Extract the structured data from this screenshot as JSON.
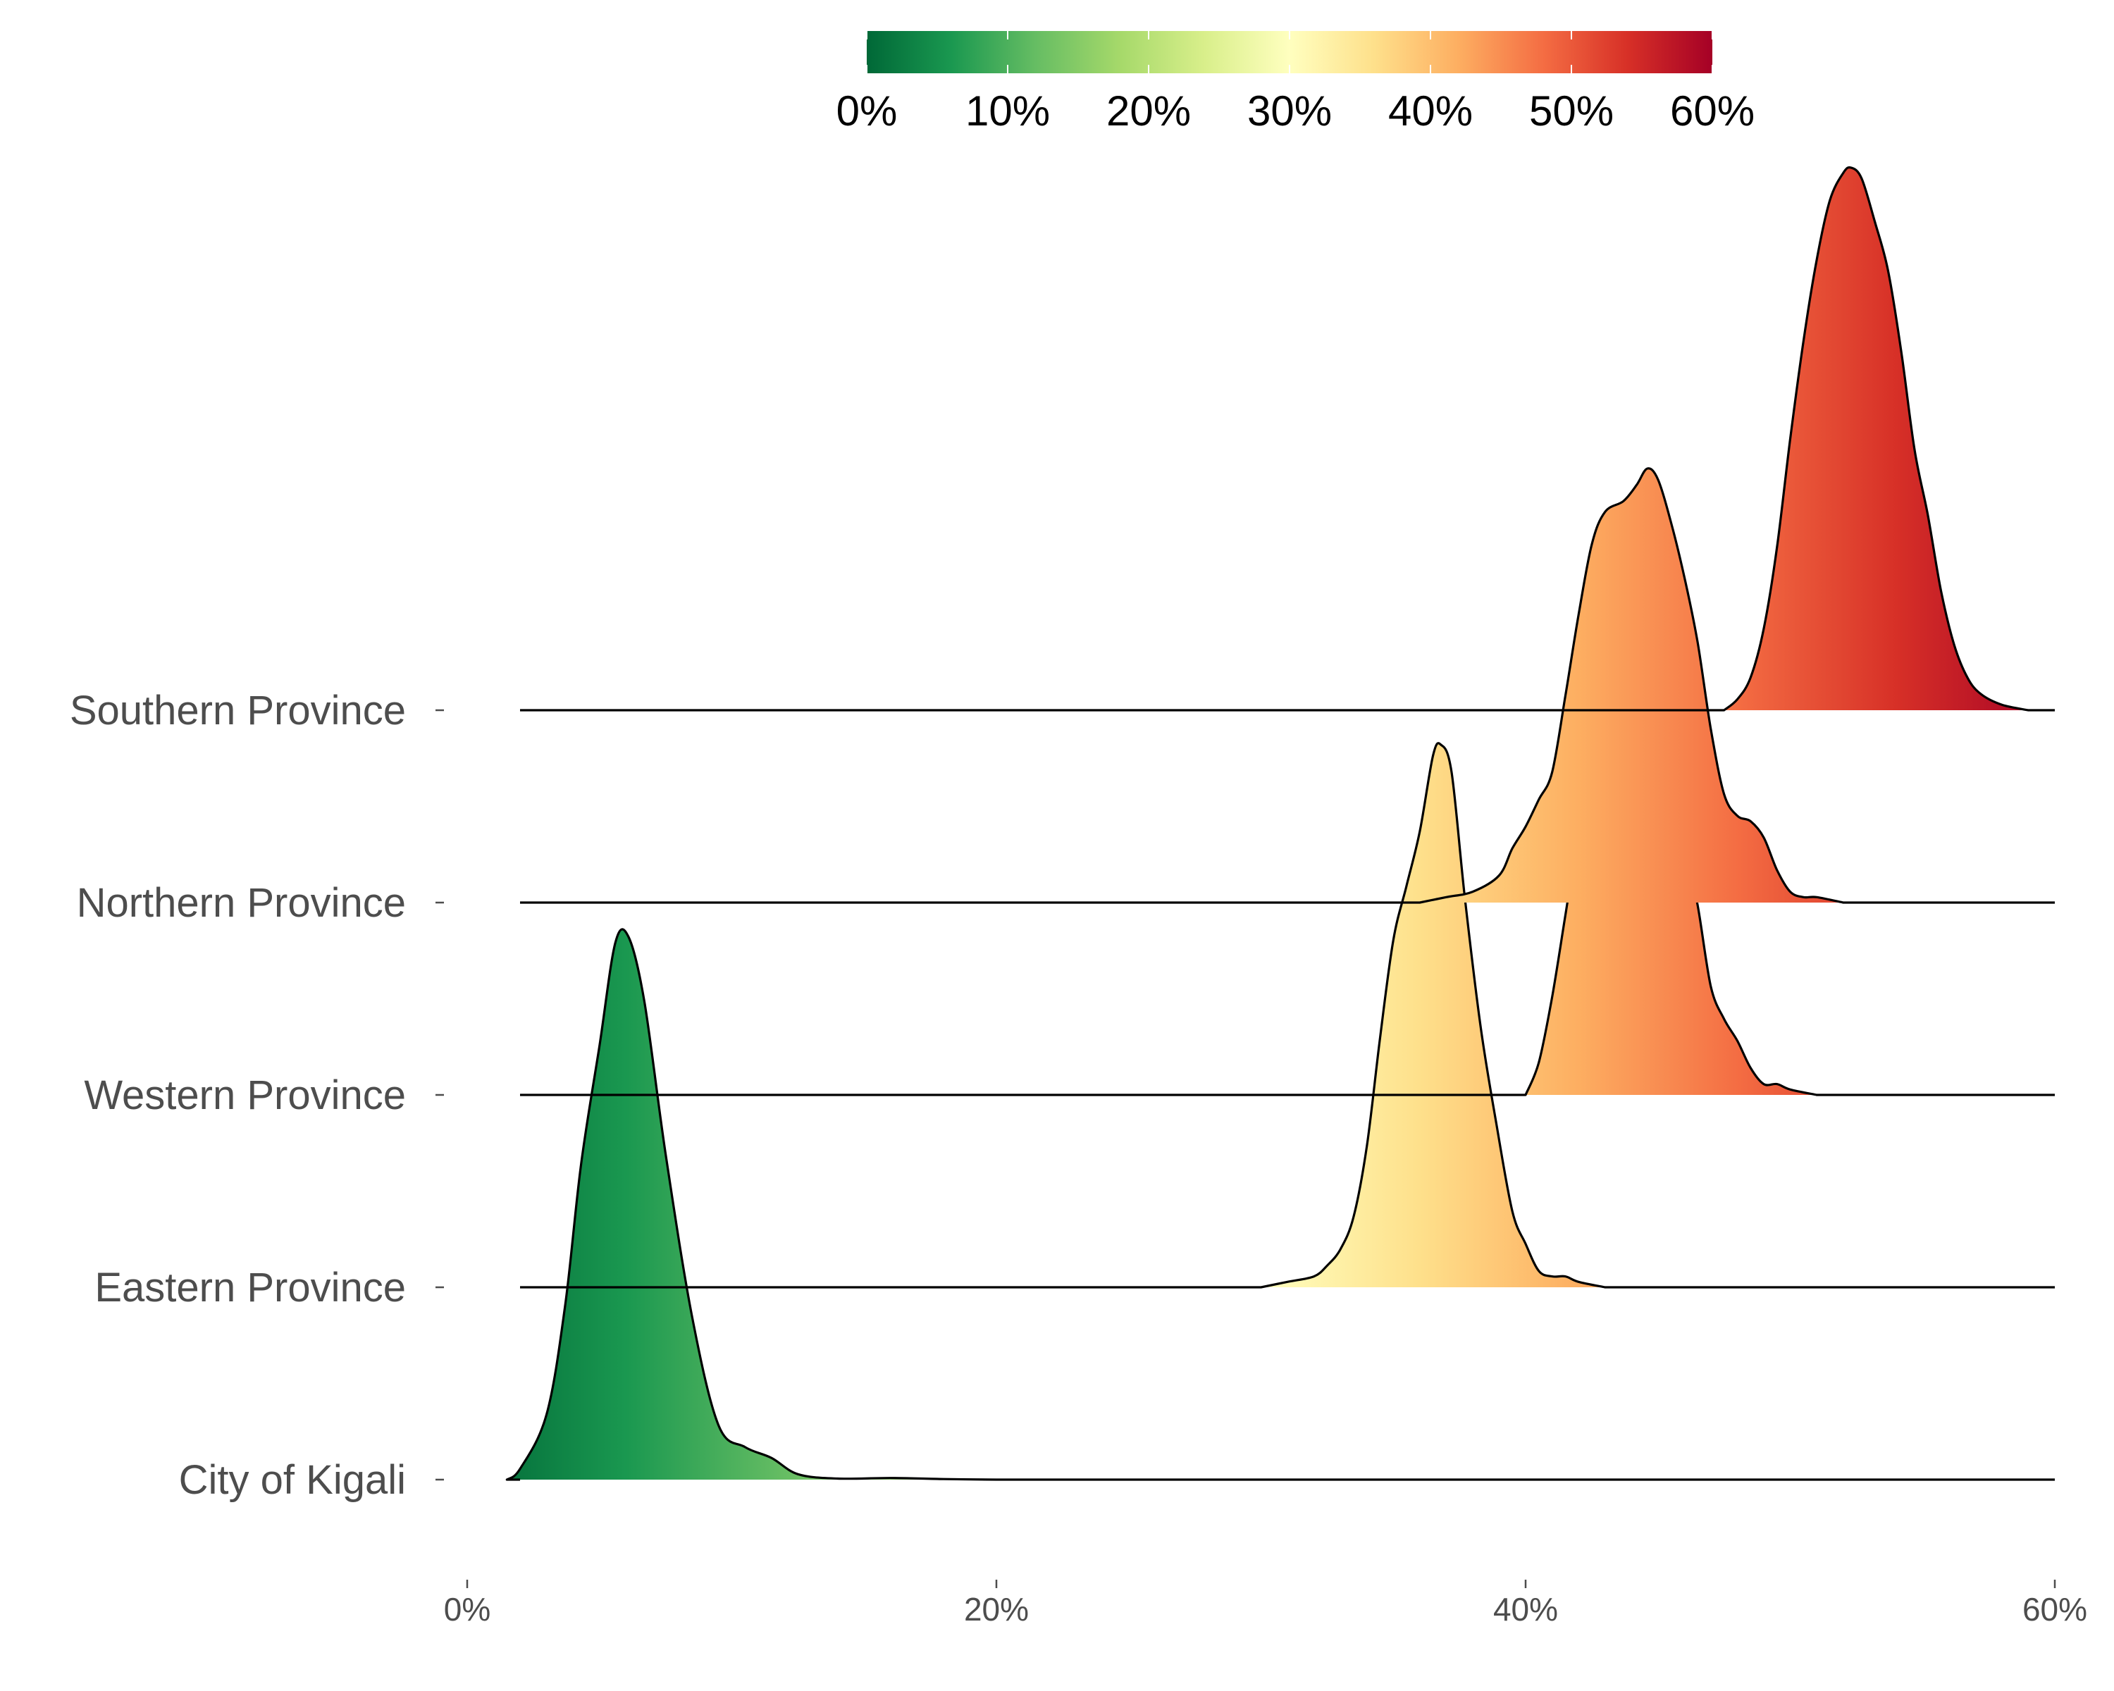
{
  "chart_data": {
    "type": "ridgeline",
    "title": "",
    "xlabel": "",
    "ylabel": "",
    "x_unit": "%",
    "xlim": [
      0,
      60
    ],
    "x_ticks": [
      0,
      20,
      40,
      60
    ],
    "x_tick_labels": [
      "0%",
      "20%",
      "40%",
      "60%"
    ],
    "legend": {
      "type": "colorbar",
      "placement": "top",
      "range": [
        0,
        60
      ],
      "ticks": [
        0,
        10,
        20,
        30,
        40,
        50,
        60
      ],
      "tick_labels": [
        "0%",
        "10%",
        "20%",
        "30%",
        "40%",
        "50%",
        "60%"
      ],
      "palette": [
        "#006837",
        "#1a9850",
        "#66bd63",
        "#a6d96a",
        "#d9ef8b",
        "#ffffbf",
        "#fee08b",
        "#fdae61",
        "#f46d43",
        "#d73027",
        "#a50026"
      ]
    },
    "categories": [
      "Southern Province",
      "Northern Province",
      "Western Province",
      "Eastern Province",
      "City of Kigali"
    ],
    "series": [
      {
        "name": "Southern Province",
        "density": [
          [
            47.5,
            0
          ],
          [
            48,
            0.02
          ],
          [
            48.5,
            0.06
          ],
          [
            49,
            0.15
          ],
          [
            49.5,
            0.3
          ],
          [
            50,
            0.5
          ],
          [
            50.5,
            0.68
          ],
          [
            51,
            0.83
          ],
          [
            51.5,
            0.94
          ],
          [
            52,
            0.99
          ],
          [
            52.3,
            1.0
          ],
          [
            52.7,
            0.98
          ],
          [
            53.2,
            0.9
          ],
          [
            53.7,
            0.81
          ],
          [
            54.2,
            0.66
          ],
          [
            54.7,
            0.48
          ],
          [
            55.2,
            0.36
          ],
          [
            55.7,
            0.22
          ],
          [
            56.2,
            0.12
          ],
          [
            56.7,
            0.06
          ],
          [
            57.2,
            0.03
          ],
          [
            58,
            0.01
          ],
          [
            59,
            0
          ]
        ]
      },
      {
        "name": "Northern Province",
        "density": [
          [
            36,
            0
          ],
          [
            37,
            0.01
          ],
          [
            38,
            0.02
          ],
          [
            39,
            0.05
          ],
          [
            39.5,
            0.1
          ],
          [
            40,
            0.14
          ],
          [
            40.5,
            0.19
          ],
          [
            41,
            0.24
          ],
          [
            41.5,
            0.38
          ],
          [
            42,
            0.53
          ],
          [
            42.5,
            0.66
          ],
          [
            43,
            0.72
          ],
          [
            43.7,
            0.74
          ],
          [
            44.2,
            0.77
          ],
          [
            44.6,
            0.8
          ],
          [
            45,
            0.78
          ],
          [
            45.5,
            0.7
          ],
          [
            46,
            0.6
          ],
          [
            46.5,
            0.48
          ],
          [
            47,
            0.32
          ],
          [
            47.5,
            0.2
          ],
          [
            48,
            0.16
          ],
          [
            48.5,
            0.15
          ],
          [
            49,
            0.12
          ],
          [
            49.5,
            0.06
          ],
          [
            50,
            0.02
          ],
          [
            50.5,
            0.01
          ],
          [
            51,
            0.01
          ],
          [
            52,
            0
          ]
        ]
      },
      {
        "name": "Western Province",
        "density": [
          [
            40,
            0
          ],
          [
            40.5,
            0.06
          ],
          [
            41,
            0.18
          ],
          [
            41.5,
            0.33
          ],
          [
            42,
            0.48
          ],
          [
            42.5,
            0.56
          ],
          [
            43,
            0.66
          ],
          [
            43.5,
            0.76
          ],
          [
            44,
            0.8
          ],
          [
            44.5,
            0.77
          ],
          [
            45,
            0.68
          ],
          [
            45.5,
            0.57
          ],
          [
            46,
            0.46
          ],
          [
            46.5,
            0.35
          ],
          [
            47,
            0.2
          ],
          [
            47.5,
            0.14
          ],
          [
            48,
            0.1
          ],
          [
            48.5,
            0.05
          ],
          [
            49,
            0.02
          ],
          [
            49.5,
            0.02
          ],
          [
            50,
            0.01
          ],
          [
            51,
            0
          ]
        ]
      },
      {
        "name": "Eastern Province",
        "density": [
          [
            30,
            0
          ],
          [
            31,
            0.01
          ],
          [
            32,
            0.02
          ],
          [
            32.5,
            0.04
          ],
          [
            33,
            0.07
          ],
          [
            33.5,
            0.13
          ],
          [
            34,
            0.26
          ],
          [
            34.5,
            0.46
          ],
          [
            35,
            0.64
          ],
          [
            35.5,
            0.74
          ],
          [
            36,
            0.84
          ],
          [
            36.5,
            0.98
          ],
          [
            36.8,
            1.0
          ],
          [
            37.2,
            0.95
          ],
          [
            37.7,
            0.72
          ],
          [
            38.3,
            0.48
          ],
          [
            38.9,
            0.3
          ],
          [
            39.5,
            0.14
          ],
          [
            40,
            0.08
          ],
          [
            40.5,
            0.03
          ],
          [
            41,
            0.02
          ],
          [
            41.5,
            0.02
          ],
          [
            42,
            0.01
          ],
          [
            43,
            0
          ]
        ]
      },
      {
        "name": "City of Kigali",
        "density": [
          [
            1.5,
            0
          ],
          [
            2,
            0.02
          ],
          [
            3,
            0.12
          ],
          [
            3.7,
            0.32
          ],
          [
            4.3,
            0.58
          ],
          [
            5,
            0.8
          ],
          [
            5.6,
            0.99
          ],
          [
            6.1,
            1.0
          ],
          [
            6.7,
            0.88
          ],
          [
            7.5,
            0.6
          ],
          [
            8.5,
            0.3
          ],
          [
            9.5,
            0.1
          ],
          [
            10.5,
            0.06
          ],
          [
            11.5,
            0.04
          ],
          [
            12.5,
            0.01
          ],
          [
            14,
            0.002
          ],
          [
            16,
            0.003
          ],
          [
            18,
            0.001
          ],
          [
            20,
            0
          ]
        ]
      }
    ]
  }
}
